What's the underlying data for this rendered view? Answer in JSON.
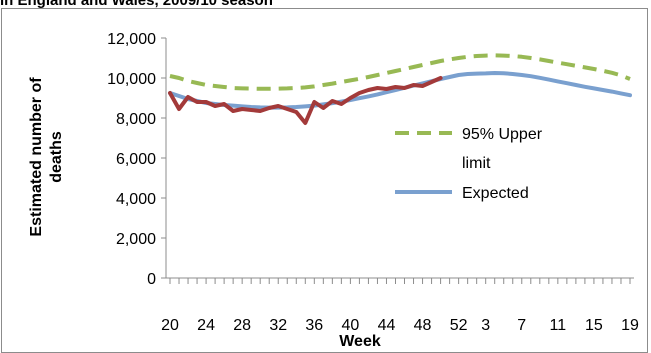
{
  "chart_data": {
    "type": "line",
    "title": "in England and Wales, 2009/10 season",
    "xlabel": "Week",
    "ylabel": "Estimated number of deaths",
    "ylim": [
      0,
      12000
    ],
    "yticks": [
      "0",
      "2,000",
      "4,000",
      "6,000",
      "8,000",
      "10,000",
      "12,000"
    ],
    "ytick_values": [
      0,
      2000,
      4000,
      6000,
      8000,
      10000,
      12000
    ],
    "weeks": [
      20,
      21,
      22,
      23,
      24,
      25,
      26,
      27,
      28,
      29,
      30,
      31,
      32,
      33,
      34,
      35,
      36,
      37,
      38,
      39,
      40,
      41,
      42,
      43,
      44,
      45,
      46,
      47,
      48,
      49,
      50,
      51,
      52,
      1,
      2,
      3,
      4,
      5,
      6,
      7,
      8,
      9,
      10,
      11,
      12,
      13,
      14,
      15,
      16,
      17,
      18,
      19
    ],
    "xtick_labels": [
      "20",
      "24",
      "28",
      "32",
      "36",
      "40",
      "44",
      "48",
      "52",
      "3",
      "7",
      "11",
      "15",
      "19"
    ],
    "xtick_positions": [
      0,
      4,
      8,
      12,
      16,
      20,
      24,
      28,
      32,
      35,
      39,
      43,
      47,
      51
    ],
    "grid": false,
    "legend_position": "right",
    "series": [
      {
        "name": "95% Upper limit",
        "color": "#98b954",
        "style": "dashed",
        "values": [
          10100,
          10000,
          9850,
          9750,
          9650,
          9600,
          9550,
          9500,
          9480,
          9470,
          9460,
          9460,
          9470,
          9480,
          9500,
          9530,
          9580,
          9650,
          9720,
          9800,
          9880,
          9960,
          10050,
          10150,
          10250,
          10350,
          10450,
          10550,
          10650,
          10750,
          10850,
          10930,
          11000,
          11060,
          11100,
          11120,
          11130,
          11120,
          11100,
          11060,
          11000,
          10930,
          10850,
          10770,
          10690,
          10610,
          10530,
          10450,
          10360,
          10260,
          10130,
          9950
        ]
      },
      {
        "name": "Expected",
        "color": "#7aa0cf",
        "style": "solid",
        "values": [
          9250,
          9100,
          8950,
          8850,
          8750,
          8700,
          8650,
          8620,
          8580,
          8550,
          8530,
          8520,
          8520,
          8530,
          8550,
          8580,
          8620,
          8680,
          8740,
          8820,
          8900,
          8990,
          9080,
          9180,
          9290,
          9400,
          9510,
          9620,
          9730,
          9840,
          9950,
          10050,
          10150,
          10200,
          10220,
          10230,
          10250,
          10240,
          10200,
          10150,
          10090,
          10010,
          9920,
          9830,
          9740,
          9650,
          9560,
          9480,
          9400,
          9320,
          9230,
          9140
        ]
      },
      {
        "name": "",
        "color": "#a33a3a",
        "style": "solid",
        "values": [
          9250,
          8450,
          9050,
          8800,
          8800,
          8600,
          8700,
          8350,
          8450,
          8400,
          8350,
          8500,
          8600,
          8450,
          8300,
          7750,
          8800,
          8500,
          8850,
          8700,
          9000,
          9250,
          9400,
          9500,
          9450,
          9550,
          9500,
          9650,
          9600,
          9800,
          10000
        ]
      }
    ]
  }
}
